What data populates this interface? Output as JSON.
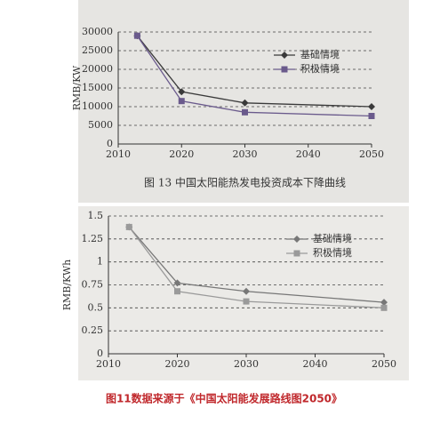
{
  "chart_data": [
    {
      "type": "line",
      "ylabel": "RMB/KW",
      "caption": "图 13 中国太阳能热发电投资成本下降曲线",
      "x": [
        2013,
        2020,
        2030,
        2050
      ],
      "series": [
        {
          "name": "基础情境",
          "color": "#3a3a3a",
          "marker": "diamond",
          "values": [
            29000,
            14000,
            11000,
            10000
          ]
        },
        {
          "name": "积极情境",
          "color": "#6a5a8c",
          "marker": "square",
          "values": [
            29000,
            11500,
            8500,
            7500
          ]
        }
      ],
      "xlim": [
        2010,
        2050
      ],
      "xticks": [
        2010,
        2020,
        2030,
        2040,
        2050
      ],
      "ylim": [
        0,
        30000
      ],
      "yticks": [
        0,
        5000,
        10000,
        15000,
        20000,
        25000,
        30000
      ],
      "grid": true,
      "legend": "upper right"
    },
    {
      "type": "line",
      "ylabel": "RMB/KWh",
      "x": [
        2013,
        2020,
        2030,
        2050
      ],
      "series": [
        {
          "name": "基础情境",
          "color": "#777777",
          "marker": "diamond",
          "values": [
            1.38,
            0.77,
            0.68,
            0.56
          ]
        },
        {
          "name": "积极情境",
          "color": "#9a9a9a",
          "marker": "square",
          "values": [
            1.38,
            0.68,
            0.57,
            0.5
          ]
        }
      ],
      "xlim": [
        2010,
        2050
      ],
      "xticks": [
        2010,
        2020,
        2030,
        2040,
        2050
      ],
      "ylim": [
        0,
        1.5
      ],
      "yticks": [
        0,
        0.25,
        0.5,
        0.75,
        1,
        1.25,
        1.5
      ],
      "grid": true,
      "legend": "upper right"
    }
  ],
  "caption": "图11数据来源于《中国太阳能发展路线图2050》"
}
